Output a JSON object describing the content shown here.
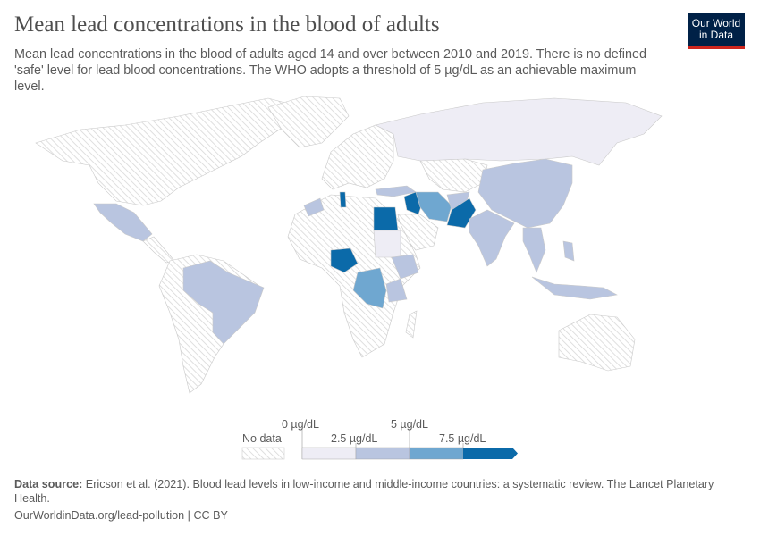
{
  "header": {
    "title": "Mean lead concentrations in the blood of adults",
    "subtitle": "Mean lead concentrations in the blood of adults aged 14 and over between 2010 and 2019. There is no defined 'safe' level for lead blood concentrations. The WHO adopts a threshold of 5 µg/dL as an achievable maximum level.",
    "logo": [
      "Our World",
      "in Data"
    ]
  },
  "legend": {
    "no_data": "No data",
    "ticks": [
      "0 µg/dL",
      "2.5 µg/dL",
      "5 µg/dL",
      "7.5 µg/dL"
    ],
    "bins": [
      {
        "range": "0–2.5 µg/dL",
        "color": "#eeedf5"
      },
      {
        "range": "2.5–5 µg/dL",
        "color": "#b9c5e0"
      },
      {
        "range": "5–7.5 µg/dL",
        "color": "#6fa7d0"
      },
      {
        "range": ">7.5 µg/dL",
        "color": "#0b6aa9"
      }
    ],
    "no_data_color": "#e6e6e6"
  },
  "map_data": {
    "0-2.5": [
      "Russia",
      "Sudan",
      "Sri Lanka"
    ],
    "2.5-5": [
      "Mexico",
      "Brazil",
      "China",
      "India",
      "Turkey",
      "Morocco",
      "Ethiopia",
      "Afghanistan",
      "Thailand",
      "Vietnam",
      "Indonesia",
      "Tanzania",
      "Kenya",
      "Philippines",
      "Bangladesh"
    ],
    "5-7.5": [
      "Iran",
      "Democratic Republic of Congo",
      "Saudi Arabia"
    ],
    ">7.5": [
      "Egypt",
      "Tunisia",
      "Iraq",
      "Pakistan",
      "Nigeria"
    ]
  },
  "footer": {
    "source_label": "Data source:",
    "source": " Ericson et al. (2021). Blood lead levels in low-income and middle-income countries: a systematic review. The Lancet Planetary Health.",
    "url": "OurWorldinData.org/lead-pollution | CC BY"
  }
}
